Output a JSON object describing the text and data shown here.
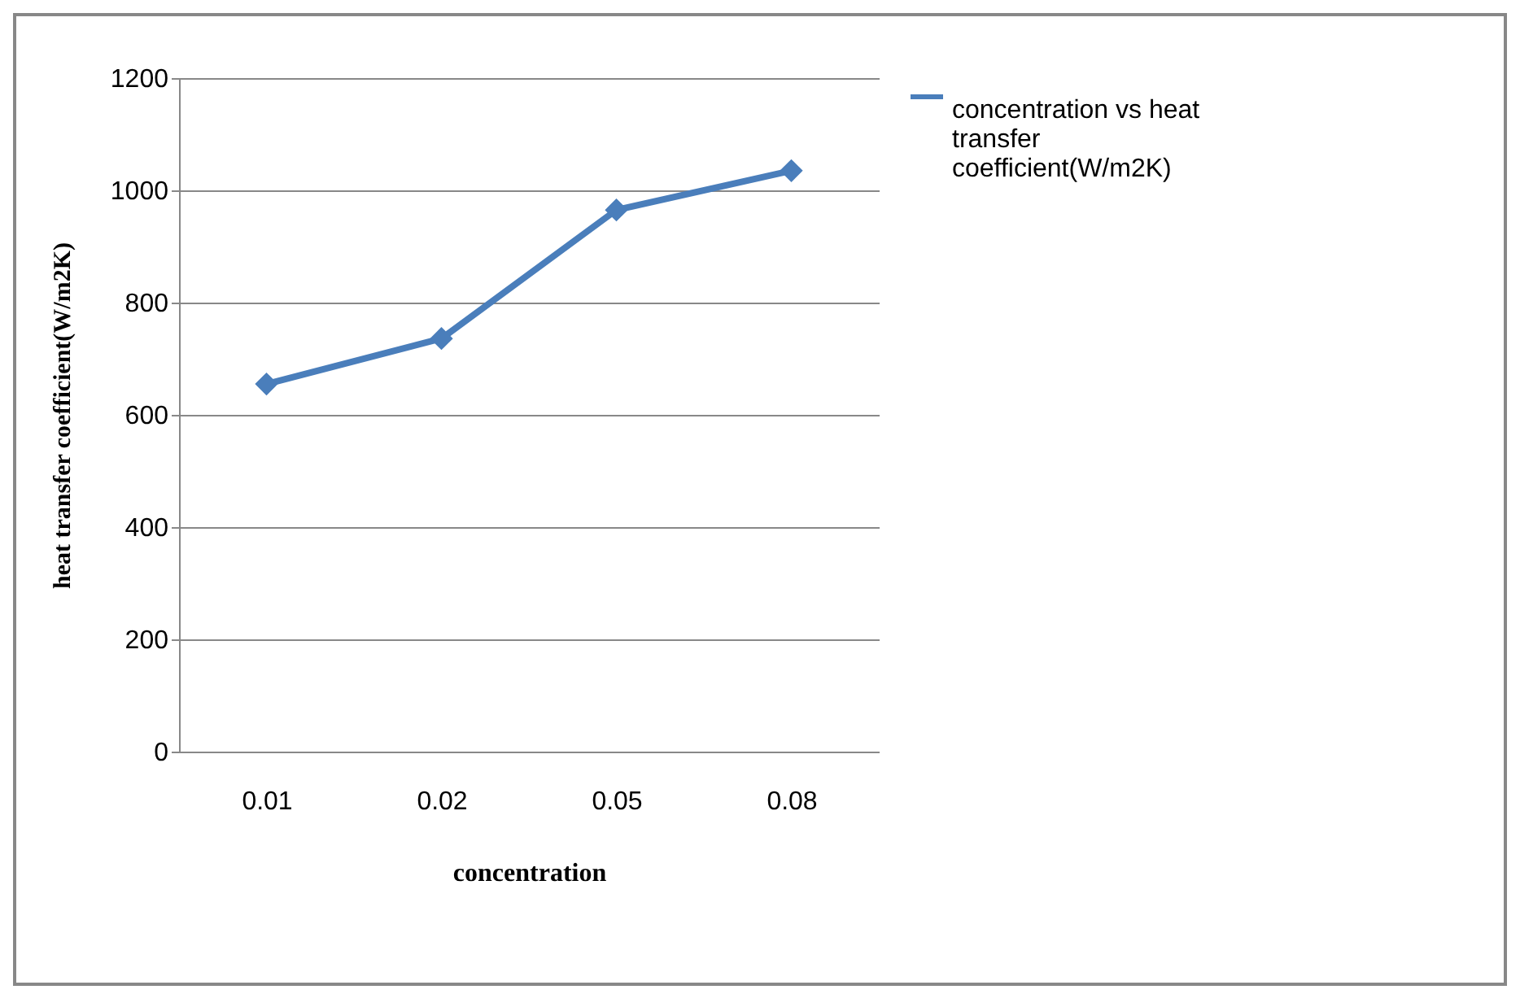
{
  "chart_data": {
    "type": "line",
    "xlabel": "concentration",
    "ylabel": "heat transfer coefficient(W/m2K)",
    "categories": [
      "0.01",
      "0.02",
      "0.05",
      "0.08"
    ],
    "series": [
      {
        "name": "concentration vs heat transfer coefficient(W/m2K)",
        "color": "#4a7ebb",
        "values": [
          655,
          736,
          965,
          1035
        ]
      }
    ],
    "ylim": [
      0,
      1200
    ],
    "yticks": [
      0,
      200,
      400,
      600,
      800,
      1000,
      1200
    ],
    "grid": "y",
    "legend": "right",
    "marker": "diamond"
  }
}
